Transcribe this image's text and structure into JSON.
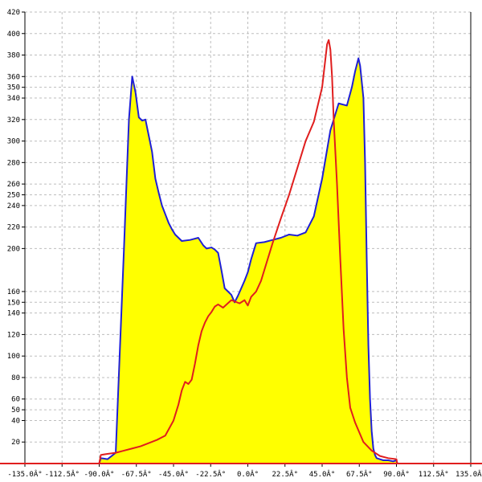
{
  "chart_data": {
    "type": "area",
    "title": "",
    "xlabel": "",
    "ylabel": "",
    "xlim": [
      -135,
      135
    ],
    "ylim": [
      0,
      420
    ],
    "grid": true,
    "x_ticks": [
      -135,
      -112.5,
      -90,
      -67.5,
      -45,
      -22.5,
      0,
      22.5,
      45,
      67.5,
      90,
      112.5,
      135
    ],
    "x_tick_labels": [
      "-135.0Â°",
      "-112.5Â°",
      "-90.0Â°",
      "-67.5Â°",
      "-45.0Â°",
      "-22.5Â°",
      "0.0Â°",
      "22.5Â°",
      "45.0Â°",
      "67.5Â°",
      "90.0Â°",
      "112.5Â°",
      "135.0Â°"
    ],
    "y_ticks": [
      20,
      40,
      50,
      60,
      80,
      100,
      120,
      140,
      150,
      160,
      200,
      220,
      240,
      250,
      260,
      280,
      300,
      320,
      340,
      350,
      360,
      380,
      400,
      420
    ],
    "y_tick_labels": [
      "20",
      "40",
      "50",
      "60",
      "80",
      "100",
      "120",
      "140",
      "150",
      "160",
      "200",
      "220",
      "240",
      "250",
      "260",
      "280",
      "300",
      "320",
      "340",
      "350",
      "360",
      "380",
      "400",
      "420"
    ],
    "series": [
      {
        "color": "#1f1fd6",
        "fill": "#ffff00",
        "x": [
          -135,
          -90,
          -89,
          -85,
          -80,
          -75,
          -72,
          -70,
          -68,
          -66,
          -64,
          -62,
          -60,
          -58,
          -56,
          -54,
          -52,
          -50,
          -48,
          -46,
          -44,
          -42,
          -40,
          -35,
          -30,
          -27,
          -25,
          -22,
          -20,
          -18,
          -16,
          -14,
          -12,
          -10,
          -8,
          -6,
          -4,
          -2,
          0,
          2,
          5,
          10,
          15,
          20,
          25,
          30,
          35,
          40,
          45,
          50,
          55,
          60,
          63,
          65,
          67,
          68,
          70,
          71,
          72,
          73,
          74,
          75,
          76,
          77,
          78,
          80,
          82,
          85,
          88,
          90,
          90.5,
          135
        ],
        "y": [
          0,
          0,
          5,
          4,
          10,
          200,
          320,
          360,
          345,
          322,
          319,
          320,
          305,
          290,
          265,
          252,
          240,
          232,
          224,
          218,
          213,
          210,
          207,
          208,
          210,
          203,
          200,
          201,
          199,
          196,
          180,
          163,
          160,
          157,
          150,
          156,
          163,
          170,
          178,
          190,
          205,
          206,
          208,
          210,
          213,
          212,
          215,
          230,
          265,
          310,
          335,
          333,
          350,
          365,
          377,
          370,
          340,
          280,
          190,
          110,
          60,
          30,
          14,
          8,
          5,
          4,
          3,
          3,
          2,
          3,
          0,
          0
        ]
      },
      {
        "color": "#e01e1e",
        "x": [
          -135,
          -90,
          -89,
          -85,
          -80,
          -75,
          -70,
          -65,
          -60,
          -55,
          -50,
          -45,
          -42,
          -40,
          -38,
          -36,
          -34,
          -32,
          -30,
          -28,
          -26,
          -24,
          -22,
          -20,
          -18,
          -15,
          -10,
          -5,
          -2,
          0,
          2,
          5,
          8,
          10,
          15,
          20,
          25,
          30,
          35,
          40,
          45,
          48,
          49,
          50,
          51,
          52,
          54,
          56,
          58,
          60,
          62,
          65,
          70,
          75,
          80,
          85,
          90,
          90.5,
          135
        ],
        "y": [
          0,
          0,
          8,
          9,
          10,
          12,
          14,
          16,
          19,
          22,
          26,
          40,
          55,
          68,
          76,
          74,
          78,
          93,
          110,
          123,
          131,
          137,
          141,
          146,
          148,
          145,
          152,
          149,
          152,
          147,
          155,
          160,
          170,
          180,
          205,
          228,
          250,
          275,
          300,
          318,
          350,
          390,
          394,
          385,
          360,
          320,
          260,
          190,
          125,
          80,
          52,
          38,
          20,
          12,
          7,
          5,
          4,
          0,
          0
        ]
      }
    ]
  }
}
